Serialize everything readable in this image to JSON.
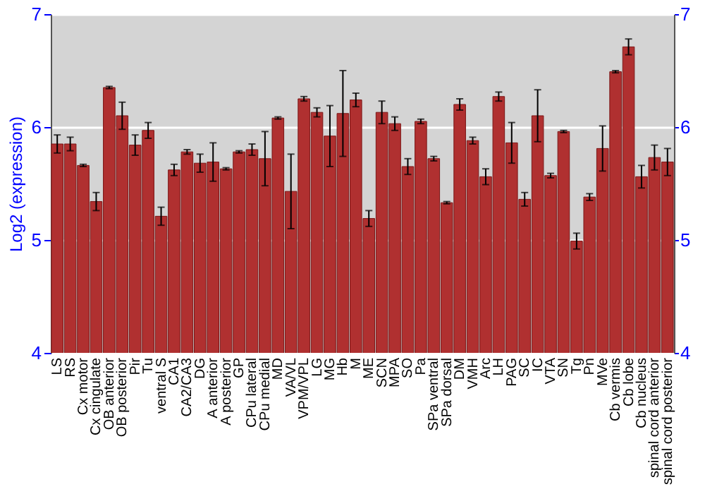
{
  "chart_data": {
    "type": "bar",
    "ylabel": "Log2 (expression)",
    "categories": [
      "LS",
      "RS",
      "Cx motor",
      "Cx cingulate",
      "OB anterior",
      "OB posterior",
      "Pir",
      "Tu",
      "ventral S",
      "CA1",
      "CA2/CA3",
      "DG",
      "A anterior",
      "A posterior",
      "GP",
      "CPu lateral",
      "CPu medial",
      "MD",
      "VA/VL",
      "VPM/VPL",
      "LG",
      "MG",
      "Hb",
      "M",
      "ME",
      "SCN",
      "MPA",
      "SO",
      "Pa",
      "SPa ventral",
      "SPa dorsal",
      "DM",
      "VMH",
      "Arc",
      "LH",
      "PAG",
      "SC",
      "IC",
      "VTA",
      "SN",
      "Tg",
      "Pn",
      "MVe",
      "Cb vermis",
      "Cb lobe",
      "Cb nucleus",
      "spinal cord anterior",
      "spinal cord posterior"
    ],
    "values": [
      5.85,
      5.85,
      5.66,
      5.34,
      6.35,
      6.1,
      5.84,
      5.97,
      5.21,
      5.62,
      5.78,
      5.68,
      5.69,
      5.63,
      5.78,
      5.8,
      5.72,
      6.08,
      5.43,
      6.25,
      6.13,
      5.92,
      6.12,
      6.24,
      5.19,
      6.13,
      6.03,
      5.65,
      6.05,
      5.72,
      5.33,
      6.2,
      5.88,
      5.56,
      6.27,
      5.86,
      5.36,
      6.1,
      5.57,
      5.96,
      4.99,
      5.38,
      5.81,
      6.49,
      6.71,
      5.56,
      5.73,
      5.69
    ],
    "errors": [
      0.08,
      0.06,
      0.01,
      0.08,
      0.01,
      0.12,
      0.09,
      0.07,
      0.08,
      0.05,
      0.02,
      0.08,
      0.17,
      0.01,
      0.01,
      0.05,
      0.24,
      0.01,
      0.33,
      0.02,
      0.04,
      0.27,
      0.38,
      0.06,
      0.07,
      0.1,
      0.06,
      0.07,
      0.02,
      0.02,
      0.01,
      0.05,
      0.03,
      0.07,
      0.04,
      0.18,
      0.06,
      0.23,
      0.02,
      0.01,
      0.07,
      0.03,
      0.2,
      0.01,
      0.07,
      0.1,
      0.11,
      0.12
    ],
    "color": "#b03030",
    "ylim": [
      4,
      7
    ],
    "yticks": [
      4,
      5,
      6,
      7
    ],
    "y2lim": [
      4,
      7
    ],
    "y2ticks": [
      4,
      5,
      6,
      7
    ],
    "grid": "y"
  }
}
